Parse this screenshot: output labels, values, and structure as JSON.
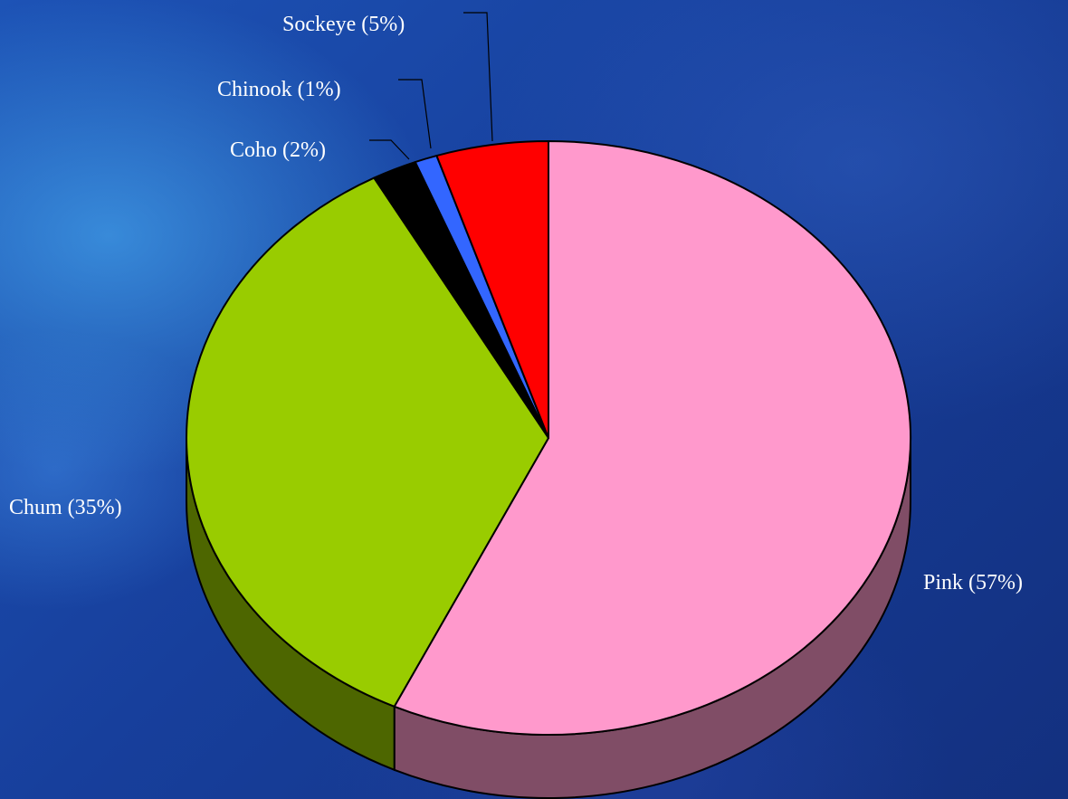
{
  "chart_data": {
    "type": "pie",
    "labels": [
      "Pink (57%)",
      "Chum (35%)",
      "Coho (2%)",
      "Chinook (1%)",
      "Sockeye (5%)"
    ],
    "series": [
      {
        "categories": [
          "Pink",
          "Chum",
          "Coho",
          "Chinook",
          "Sockeye"
        ],
        "values": [
          57,
          35,
          2,
          1,
          5
        ]
      }
    ],
    "colors": [
      "#FF99CC",
      "#99CC00",
      "#000000",
      "#3366FF",
      "#FF0000"
    ],
    "side_colors": [
      "#804D66",
      "#4D6600",
      "#000000",
      "#1A3380",
      "#800000"
    ],
    "style": "3d-pie"
  }
}
